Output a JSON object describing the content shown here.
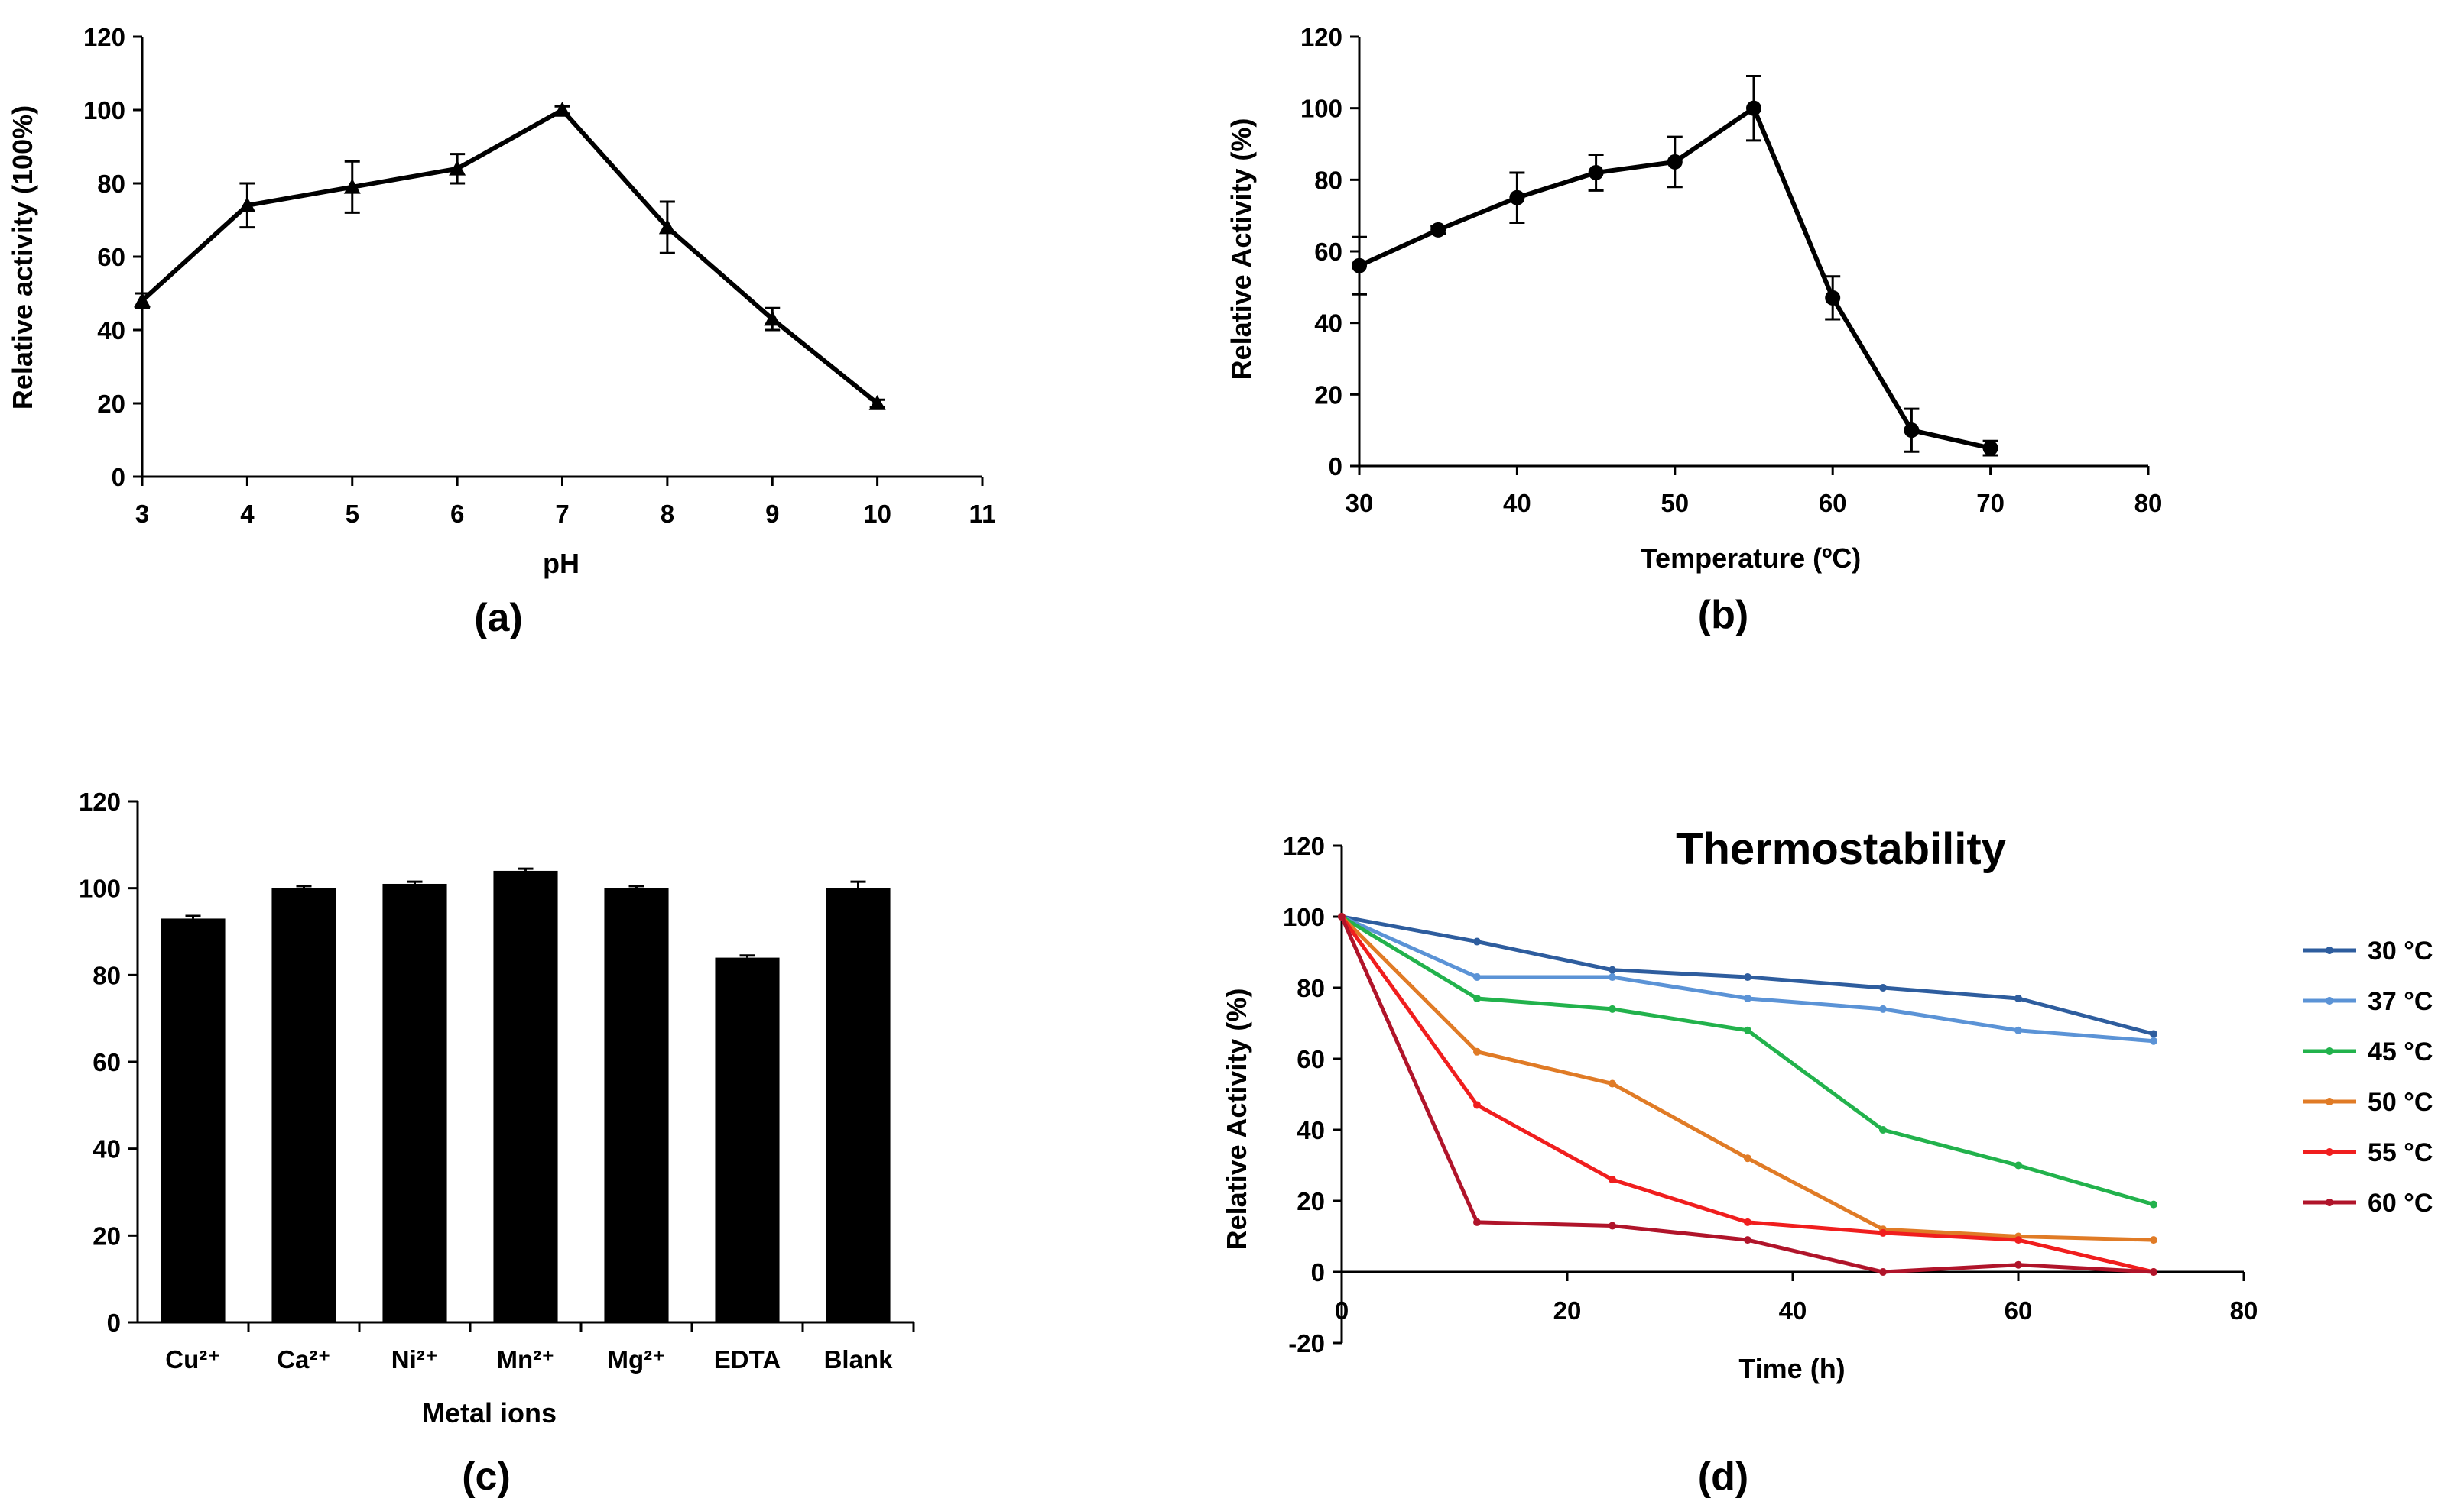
{
  "chart_data": [
    {
      "id": "a",
      "type": "line",
      "panel_label": "(a)",
      "title": "",
      "xlabel": "pH",
      "ylabel": "Relative activity (100%)",
      "xlim": [
        3,
        11
      ],
      "ylim": [
        0,
        120
      ],
      "xticks": [
        "3",
        "4",
        "5",
        "6",
        "7",
        "8",
        "9",
        "10",
        "11"
      ],
      "yticks": [
        "0",
        "20",
        "40",
        "60",
        "80",
        "100",
        "120"
      ],
      "marker": "triangle",
      "series": [
        {
          "name": "pH activity",
          "color": "#000000",
          "x": [
            3,
            4,
            5,
            6,
            7,
            8,
            9,
            10
          ],
          "y": [
            48,
            74,
            79,
            84,
            100,
            68,
            43,
            20
          ],
          "err": [
            2,
            6,
            7,
            4,
            1,
            7,
            3,
            1
          ]
        }
      ]
    },
    {
      "id": "b",
      "type": "line",
      "panel_label": "(b)",
      "title": "",
      "xlabel": "Temperature (ºC)",
      "ylabel": "Relative Activity (%)",
      "xlim": [
        30,
        80
      ],
      "ylim": [
        0,
        120
      ],
      "xticks": [
        "30",
        "40",
        "50",
        "60",
        "70",
        "80"
      ],
      "yticks": [
        "0",
        "20",
        "40",
        "60",
        "80",
        "100",
        "120"
      ],
      "marker": "circle",
      "series": [
        {
          "name": "Temperature activity",
          "color": "#000000",
          "x": [
            30,
            35,
            40,
            45,
            50,
            55,
            60,
            65,
            70
          ],
          "y": [
            56,
            66,
            75,
            82,
            85,
            100,
            47,
            10,
            5
          ],
          "err": [
            8,
            1,
            7,
            5,
            7,
            9,
            6,
            6,
            2
          ]
        }
      ]
    },
    {
      "id": "c",
      "type": "bar",
      "panel_label": "(c)",
      "title": "",
      "xlabel": "Metal ions",
      "ylabel": "",
      "ylim": [
        0,
        120
      ],
      "yticks": [
        "0",
        "20",
        "40",
        "60",
        "80",
        "100",
        "120"
      ],
      "categories": [
        "Cu²⁺",
        "Ca²⁺",
        "Ni²⁺",
        "Mn²⁺",
        "Mg²⁺",
        "EDTA",
        "Blank"
      ],
      "values": [
        93,
        100,
        101,
        104,
        100,
        84,
        100
      ],
      "err": [
        0.6,
        0.5,
        0.5,
        0.5,
        0.5,
        0.5,
        1.5
      ],
      "color": "#000000"
    },
    {
      "id": "d",
      "type": "line",
      "panel_label": "(d)",
      "title": "Thermostability",
      "xlabel": "Time (h)",
      "ylabel": "Relative Activity (%)",
      "xlim": [
        0,
        80
      ],
      "ylim": [
        -20,
        120
      ],
      "xticks": [
        "0",
        "20",
        "40",
        "60",
        "80"
      ],
      "yticks": [
        "-20",
        "0",
        "20",
        "40",
        "60",
        "80",
        "100",
        "120"
      ],
      "legend_position": "right",
      "series": [
        {
          "name": "30 °C",
          "color": "#2e5d9e",
          "x": [
            0,
            12,
            24,
            36,
            48,
            60,
            72
          ],
          "y": [
            100,
            93,
            85,
            83,
            80,
            77,
            67
          ]
        },
        {
          "name": "37 °C",
          "color": "#5b93d6",
          "x": [
            0,
            12,
            24,
            36,
            48,
            60,
            72
          ],
          "y": [
            100,
            83,
            83,
            77,
            74,
            68,
            65
          ]
        },
        {
          "name": "45 °C",
          "color": "#22b24c",
          "x": [
            0,
            12,
            24,
            36,
            48,
            60,
            72
          ],
          "y": [
            100,
            77,
            74,
            68,
            40,
            30,
            19
          ]
        },
        {
          "name": "50 °C",
          "color": "#e07b26",
          "x": [
            0,
            12,
            24,
            36,
            48,
            60,
            72
          ],
          "y": [
            100,
            62,
            53,
            32,
            12,
            10,
            9
          ]
        },
        {
          "name": "55 °C",
          "color": "#f01e1e",
          "x": [
            0,
            12,
            24,
            36,
            48,
            60,
            72
          ],
          "y": [
            100,
            47,
            26,
            14,
            11,
            9,
            0
          ]
        },
        {
          "name": "60 °C",
          "color": "#b0142a",
          "x": [
            0,
            12,
            24,
            36,
            48,
            60,
            72
          ],
          "y": [
            100,
            14,
            13,
            9,
            0,
            2,
            0
          ]
        }
      ]
    }
  ]
}
